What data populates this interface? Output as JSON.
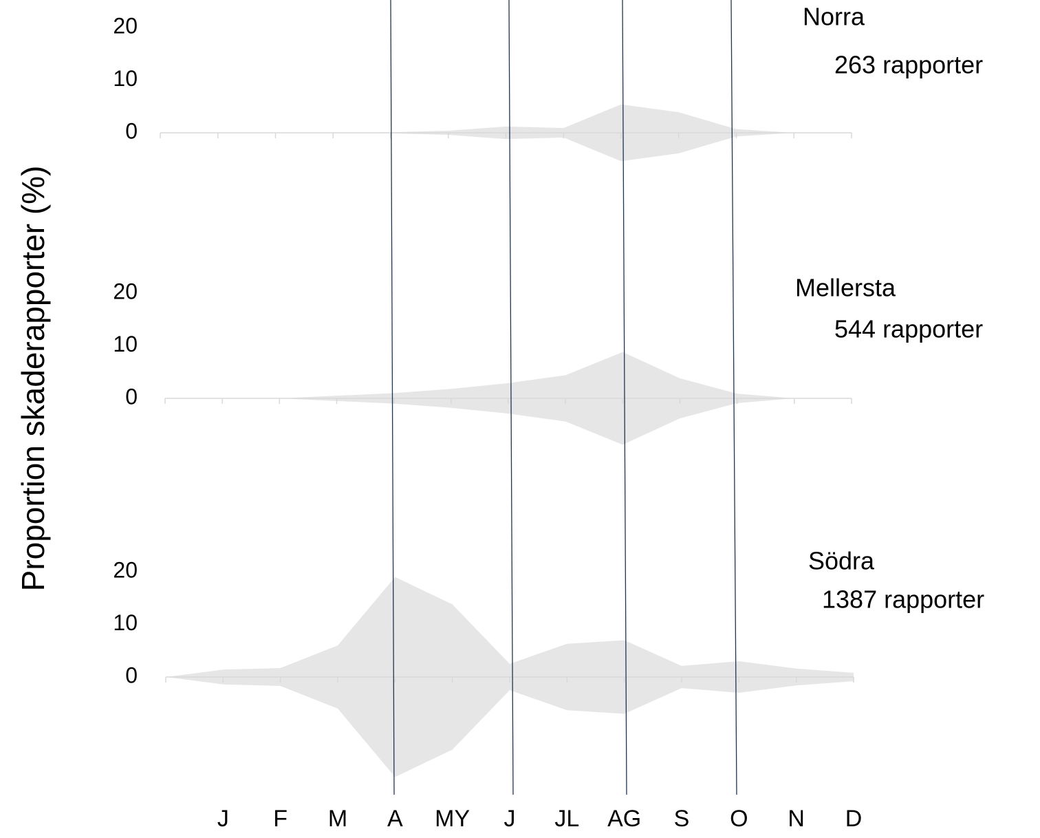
{
  "ylabel": "Proportion skaderapporter (%)",
  "categories": [
    null,
    "J",
    "F",
    "M",
    "A",
    "MY",
    "J",
    "JL",
    "AG",
    "S",
    "O",
    "N",
    "D"
  ],
  "chart_data": [
    {
      "type": "violin-area",
      "title": "Norra",
      "subtitle": "263 rapporter",
      "color": "#e6e6e6",
      "values": [
        0,
        0,
        0,
        0,
        0.1,
        0.4,
        1.2,
        0.9,
        5.4,
        3.9,
        0.7,
        0,
        0
      ],
      "ylim": [
        0,
        20
      ],
      "yticks": [
        0,
        10,
        20
      ]
    },
    {
      "type": "violin-area",
      "title": "Mellersta",
      "subtitle": "544 rapporter",
      "color": "#e6e6e6",
      "values": [
        0,
        0,
        0,
        0.5,
        1,
        1.8,
        2.9,
        4.4,
        8.8,
        3.8,
        0.9,
        0,
        0
      ],
      "ylim": [
        0,
        20
      ],
      "yticks": [
        0,
        10,
        20
      ]
    },
    {
      "type": "violin-area",
      "title": "Södra",
      "subtitle": "1387 rapporter",
      "color": "#e6e6e6",
      "values": [
        0,
        1.4,
        1.7,
        6,
        19,
        13.8,
        2.5,
        6.3,
        7,
        2.1,
        3,
        1.6,
        0.8
      ],
      "ylim": [
        0,
        20
      ],
      "yticks": [
        0,
        10,
        20
      ]
    }
  ]
}
